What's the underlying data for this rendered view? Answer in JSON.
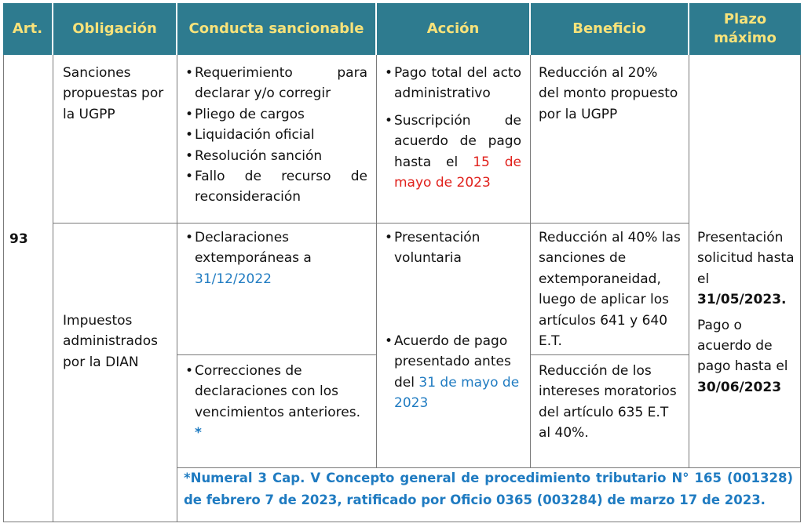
{
  "header": {
    "art": "Art.",
    "obligacion": "Obligación",
    "conducta": "Conducta sancionable",
    "accion": "Acción",
    "beneficio": "Beneficio",
    "plazo_line1": "Plazo",
    "plazo_line2": "máximo"
  },
  "article": "93",
  "row1": {
    "obligacion": "Sanciones propuestas por la UGPP",
    "conducta_items": [
      "Requerimiento para declarar y/o corregir",
      "Pliego de cargos",
      "Liquidación oficial",
      "Resolución sanción",
      "Fallo de recurso de reconsideración"
    ],
    "accion_item1": "Pago total del acto administrativo",
    "accion_item2_text": "Suscripción de acuerdo de pago hasta el",
    "accion_item2_date": "15 de mayo de 2023",
    "beneficio": "Reducción al 20% del monto propuesto por la UGPP"
  },
  "row2": {
    "obligacion": "Impuestos administrados por la DIAN",
    "conducta_a_text": "Declaraciones extemporáneas a",
    "conducta_a_date": "31/12/2022",
    "conducta_b_text": "Correcciones de declaraciones con los vencimientos anteriores.",
    "conducta_b_mark": "*",
    "accion_item1": "Presentación voluntaria",
    "accion_item2_text": "Acuerdo de pago presentado antes del",
    "accion_item2_date": "31 de mayo de 2023",
    "beneficio_a": "Reducción al 40% las sanciones de extemporaneidad, luego de aplicar los artículos 641 y 640 E.T.",
    "beneficio_b": "Reducción de los intereses moratorios del artículo 635 E.T al 40%."
  },
  "plazo": {
    "p1_text": "Presentación solicitud hasta el",
    "p1_date": "31/05/2023.",
    "p2_text": "Pago o acuerdo de pago hasta el",
    "p2_date": "30/06/2023"
  },
  "footnote": "*Numeral 3 Cap. V Concepto general de procedimiento tributario N° 165 (001328) de febrero 7 de 2023, ratificado por Oficio 0365 (003284) de marzo 17 de 2023.",
  "colors": {
    "header_bg": "#2e7b8f",
    "header_text": "#f7e27a",
    "accent_red": "#e0201b",
    "accent_blue": "#1f7bc1"
  }
}
